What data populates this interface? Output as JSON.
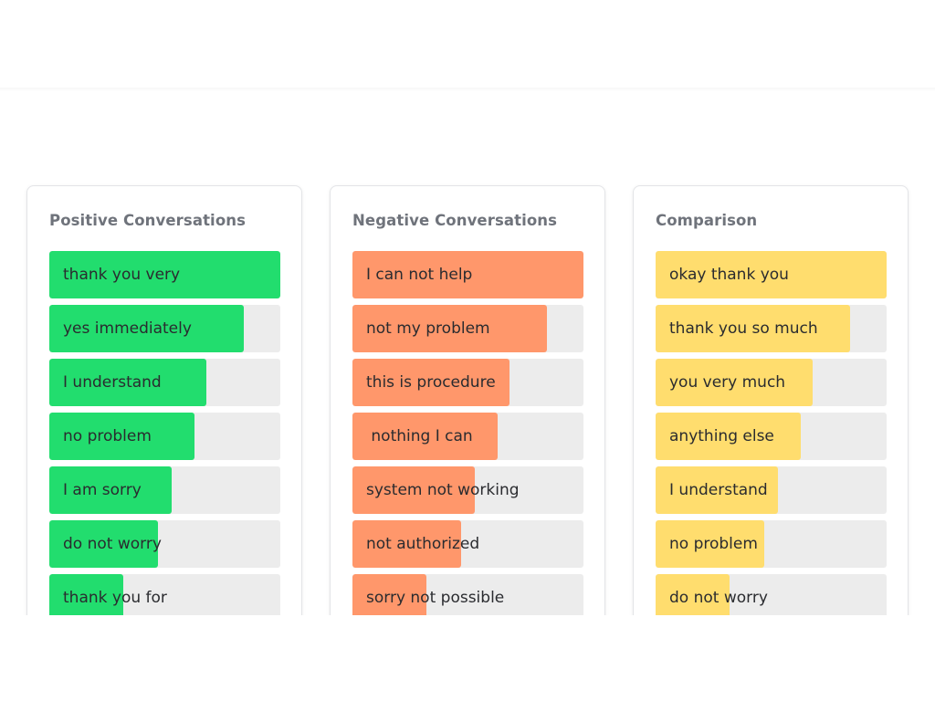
{
  "colors": {
    "positive": "#22dd6e",
    "negative": "#ff976b",
    "comparison": "#ffdd6e",
    "track": "#ececec"
  },
  "cards": [
    {
      "title": "Positive Conversations",
      "color": "#22dd6e",
      "items": [
        {
          "label": "thank you very",
          "fill_percent": 100
        },
        {
          "label": "yes immediately",
          "fill_percent": 84
        },
        {
          "label": "I understand",
          "fill_percent": 68
        },
        {
          "label": "no problem",
          "fill_percent": 63
        },
        {
          "label": "I am sorry",
          "fill_percent": 53
        },
        {
          "label": "do not worry",
          "fill_percent": 47
        },
        {
          "label": "thank you for",
          "fill_percent": 32
        }
      ]
    },
    {
      "title": "Negative Conversations",
      "color": "#ff976b",
      "items": [
        {
          "label": "I can not help",
          "fill_percent": 100
        },
        {
          "label": "not my problem",
          "fill_percent": 84
        },
        {
          "label": "this is procedure",
          "fill_percent": 68
        },
        {
          "label": " nothing I can",
          "fill_percent": 63
        },
        {
          "label": "system not working",
          "fill_percent": 53
        },
        {
          "label": "not authorized",
          "fill_percent": 47
        },
        {
          "label": "sorry not possible",
          "fill_percent": 32
        }
      ]
    },
    {
      "title": "Comparison",
      "color": "#ffdd6e",
      "items": [
        {
          "label": "okay thank you",
          "fill_percent": 100
        },
        {
          "label": "thank you so much",
          "fill_percent": 84
        },
        {
          "label": "you very much",
          "fill_percent": 68
        },
        {
          "label": "anything else",
          "fill_percent": 63
        },
        {
          "label": "I understand",
          "fill_percent": 53
        },
        {
          "label": "no problem",
          "fill_percent": 47
        },
        {
          "label": "do not worry",
          "fill_percent": 32
        }
      ]
    }
  ]
}
